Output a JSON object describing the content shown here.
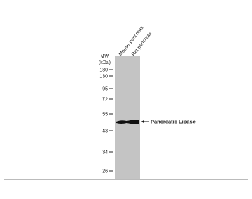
{
  "mw_label": {
    "line1": "MW",
    "line2": "(kDa)"
  },
  "markers": [
    "180",
    "130",
    "95",
    "72",
    "55",
    "43",
    "34",
    "26"
  ],
  "lanes": [
    "Mouse pancreas",
    "Rat pancreas"
  ],
  "band_label": "Pancreatic Lipase"
}
